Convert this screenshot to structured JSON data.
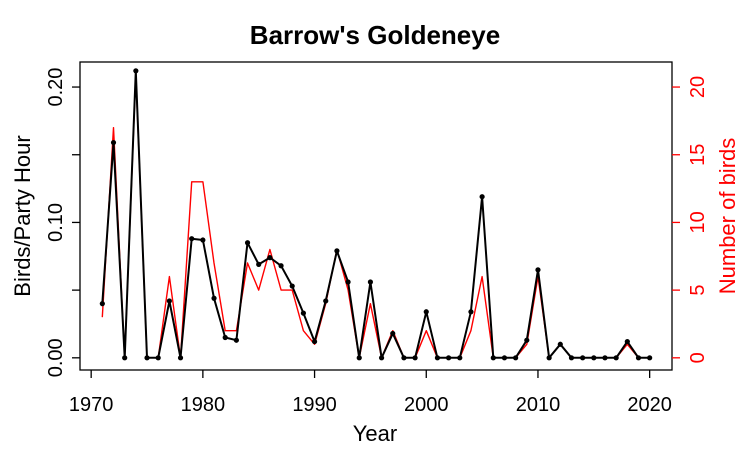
{
  "chart_data": {
    "type": "line",
    "title": "Barrow's Goldeneye",
    "xlabel": "Year",
    "ylabel": "Birds/Party Hour",
    "y2label": "Number of birds",
    "xlim": [
      1970,
      2020
    ],
    "ylim": [
      0,
      0.2
    ],
    "y2lim": [
      0,
      20
    ],
    "x_ticks": [
      1970,
      1980,
      1990,
      2000,
      2010,
      2020
    ],
    "y_ticks": [
      "0.00",
      "0.10",
      "0.20"
    ],
    "y_ticks_minor": [
      0.05,
      0.15
    ],
    "y2_ticks": [
      0,
      5,
      10,
      15,
      20
    ],
    "grid": false,
    "colors": {
      "primary": "#000000",
      "secondary": "#ff0000"
    },
    "x": [
      1971,
      1972,
      1973,
      1974,
      1975,
      1976,
      1977,
      1978,
      1979,
      1980,
      1981,
      1982,
      1983,
      1984,
      1985,
      1986,
      1987,
      1988,
      1989,
      1990,
      1991,
      1992,
      1993,
      1994,
      1995,
      1996,
      1997,
      1998,
      1999,
      2000,
      2001,
      2002,
      2003,
      2004,
      2005,
      2006,
      2007,
      2008,
      2009,
      2010,
      2011,
      2012,
      2013,
      2014,
      2015,
      2016,
      2017,
      2018,
      2019,
      2020
    ],
    "series": [
      {
        "axis": "left",
        "markers": true,
        "values": [
          0.04,
          0.159,
          0.0,
          0.212,
          0.0,
          0.0,
          0.042,
          0.0,
          0.088,
          0.087,
          0.044,
          0.015,
          0.013,
          0.085,
          0.069,
          0.074,
          0.068,
          0.053,
          0.033,
          0.012,
          0.042,
          0.079,
          0.056,
          0.0,
          0.056,
          0.0,
          0.018,
          0.0,
          0.0,
          0.034,
          0.0,
          0.0,
          0.0,
          0.034,
          0.119,
          0.0,
          0.0,
          0.0,
          0.013,
          0.065,
          0.0,
          0.01,
          0.0,
          0.0,
          0.0,
          0.0,
          0.0,
          0.012,
          0.0,
          0.0
        ]
      },
      {
        "axis": "right",
        "markers": false,
        "values": [
          3,
          17,
          0,
          21,
          0,
          0,
          6,
          0,
          13,
          13,
          7,
          2,
          2,
          7,
          5,
          8,
          5,
          5,
          2,
          1,
          4,
          8,
          5,
          0,
          4,
          0,
          2,
          0,
          0,
          2,
          0,
          0,
          0,
          2,
          6,
          0,
          0,
          0,
          1,
          6,
          0,
          1,
          0,
          0,
          0,
          0,
          0,
          1,
          0,
          0
        ]
      }
    ]
  }
}
